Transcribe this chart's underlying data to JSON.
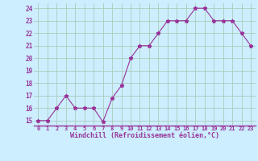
{
  "x": [
    0,
    1,
    2,
    3,
    4,
    5,
    6,
    7,
    8,
    9,
    10,
    11,
    12,
    13,
    14,
    15,
    16,
    17,
    18,
    19,
    20,
    21,
    22,
    23
  ],
  "y": [
    15,
    15,
    16,
    17,
    16,
    16,
    16,
    14.9,
    16.8,
    17.8,
    20,
    21,
    21,
    22,
    23,
    23,
    23,
    24,
    24,
    23,
    23,
    23,
    22,
    21
  ],
  "line_color": "#993399",
  "marker": "*",
  "bg_color": "#cceeff",
  "grid_color": "#aaccbb",
  "ylabel_ticks": [
    15,
    16,
    17,
    18,
    19,
    20,
    21,
    22,
    23,
    24
  ],
  "xlabel": "Windchill (Refroidissement éolien,°C)",
  "xlabel_color": "#993399",
  "tick_color": "#993399",
  "ylim": [
    14.6,
    24.4
  ],
  "xlim": [
    -0.5,
    23.5
  ]
}
